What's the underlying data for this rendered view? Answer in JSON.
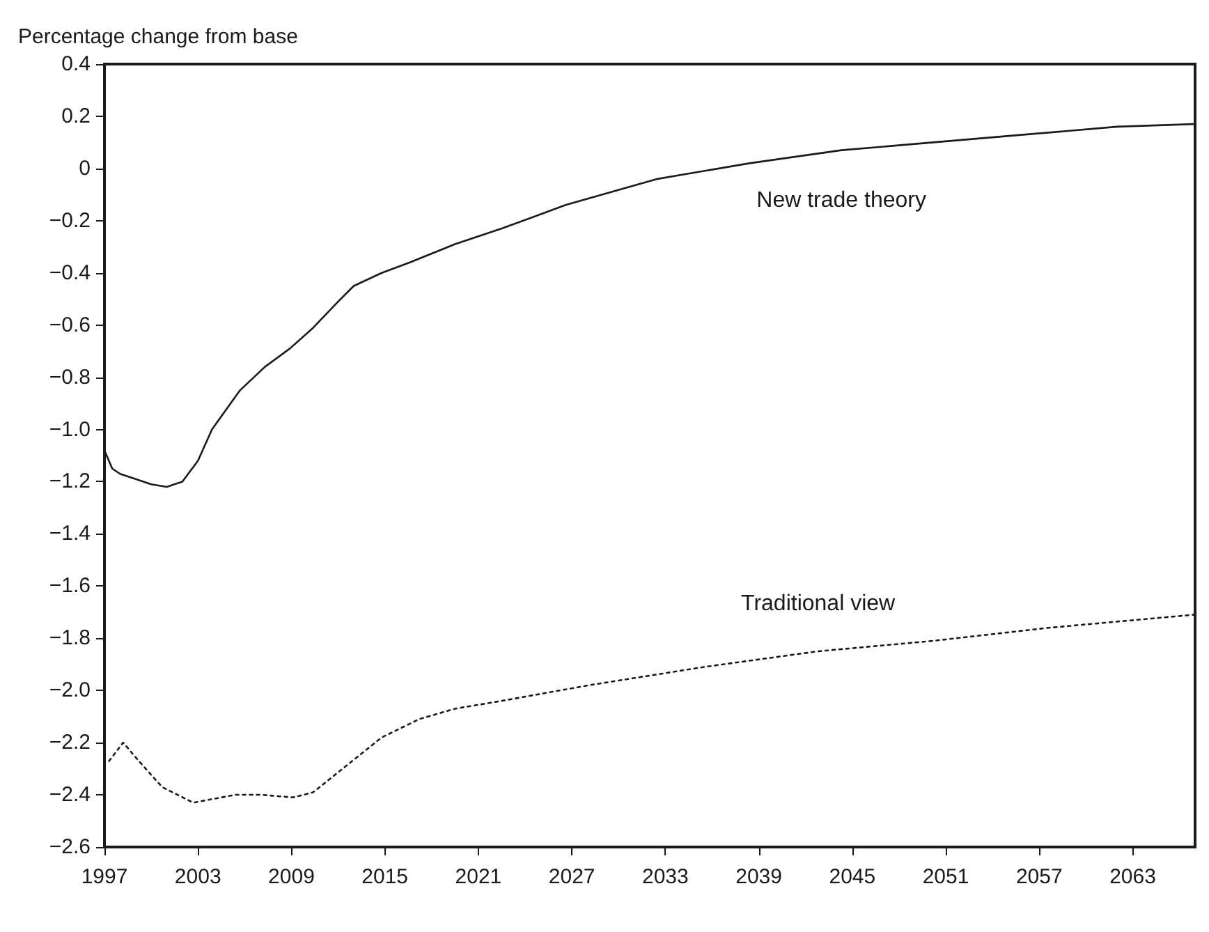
{
  "chart_data": {
    "type": "line",
    "ylabel": "Percentage change from base",
    "xlim": [
      1997,
      2067
    ],
    "xticks": [
      1997,
      2003,
      2009,
      2015,
      2021,
      2027,
      2033,
      2039,
      2045,
      2051,
      2057,
      2063
    ],
    "ylim": [
      -2.6,
      0.4
    ],
    "yticks": [
      0.4,
      0.2,
      0,
      {
        "value": -0.2,
        "label": "−0.2"
      },
      {
        "value": -0.4,
        "label": "−0.4"
      },
      {
        "value": -0.6,
        "label": "−0.6"
      },
      {
        "value": -0.8,
        "label": "−0.8"
      },
      {
        "value": -1.0,
        "label": "−1.0"
      },
      {
        "value": -1.2,
        "label": "−1.2"
      },
      {
        "value": -1.4,
        "label": "−1.4"
      },
      {
        "value": -1.6,
        "label": "−1.6"
      },
      {
        "value": -1.8,
        "label": "−1.8"
      },
      {
        "value": -2.0,
        "label": "−2.0"
      },
      {
        "value": -2.2,
        "label": "−2.2"
      },
      {
        "value": -2.4,
        "label": "−2.4"
      },
      {
        "value": -2.6,
        "label": "−2.6"
      }
    ],
    "marker": "none",
    "series": [
      {
        "name": "New trade theory",
        "color": "#1a1a1a",
        "line_style": "solid",
        "x": [
          1997,
          1997.5,
          1998,
          1999,
          2000,
          2001,
          2002,
          2003,
          2003.9,
          2004.5,
          2005.7,
          2007.3,
          2008.9,
          2010.4,
          2012,
          2013,
          2014.8,
          2016.6,
          2019.5,
          2022.5,
          2026.6,
          2032.5,
          2038.4,
          2044.3,
          2050.2,
          2056.1,
          2062,
          2066.9
        ],
        "values": [
          -1.08,
          -1.15,
          -1.17,
          -1.19,
          -1.21,
          -1.22,
          -1.2,
          -1.12,
          -1.0,
          -0.95,
          -0.85,
          -0.76,
          -0.69,
          -0.61,
          -0.51,
          -0.45,
          -0.4,
          -0.36,
          -0.29,
          -0.23,
          -0.14,
          -0.04,
          0.02,
          0.07,
          0.1,
          0.13,
          0.16,
          0.17
        ]
      },
      {
        "name": "Traditional view",
        "color": "#1a1a1a",
        "line_style": "dotted",
        "x": [
          1997.3,
          1998.2,
          1999.2,
          2000.7,
          2002.7,
          2005.4,
          2007.1,
          2009.1,
          2010.4,
          2012.5,
          2014.8,
          2017.2,
          2019.5,
          2022.5,
          2028.1,
          2035.5,
          2042.8,
          2050.2,
          2057.6,
          2066.9
        ],
        "values": [
          -2.27,
          -2.2,
          -2.27,
          -2.37,
          -2.43,
          -2.4,
          -2.4,
          -2.41,
          -2.39,
          -2.29,
          -2.18,
          -2.11,
          -2.07,
          -2.04,
          -1.98,
          -1.91,
          -1.85,
          -1.81,
          -1.76,
          -1.71
        ]
      }
    ]
  }
}
